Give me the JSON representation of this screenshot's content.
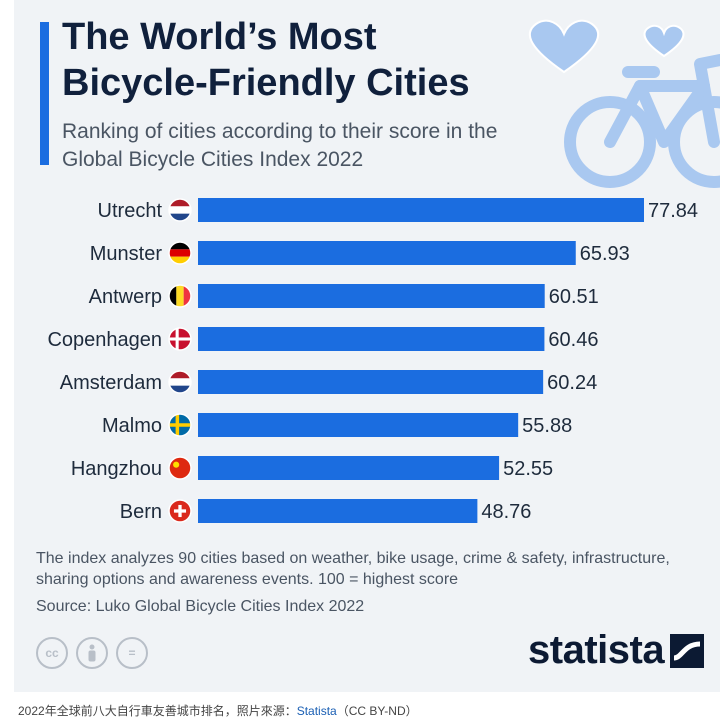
{
  "header": {
    "title": "The World’s Most Bicycle-Friendly Cities",
    "subtitle": "Ranking of cities according to their score in the Global Bicycle Cities Index 2022"
  },
  "chart_data": {
    "type": "bar",
    "orientation": "horizontal",
    "categories": [
      "Utrecht",
      "Munster",
      "Antwerp",
      "Copenhagen",
      "Amsterdam",
      "Malmo",
      "Hangzhou",
      "Bern"
    ],
    "flags": [
      "netherlands",
      "germany",
      "belgium",
      "denmark",
      "netherlands",
      "sweden",
      "china",
      "switzerland"
    ],
    "values": [
      77.84,
      65.93,
      60.51,
      60.46,
      60.24,
      55.88,
      52.55,
      48.76
    ],
    "value_labels": [
      "77.84",
      "65.93",
      "60.51",
      "60.46",
      "60.24",
      "55.88",
      "52.55",
      "48.76"
    ],
    "bar_color": "#1b6de0",
    "xlim": [
      0,
      77.84
    ],
    "grid": false,
    "legend": "none"
  },
  "notes": {
    "footnote": "The index analyzes 90 cities based on weather, bike usage, crime & safety, infrastructure, sharing options and awareness events. 100 = highest score",
    "source": "Source: Luko Global Bicycle Cities Index 2022"
  },
  "brand": {
    "name": "statista"
  },
  "license_icons": [
    "cc-icon",
    "by-person-icon",
    "nd-equals-icon"
  ],
  "license_glyphs": [
    "cc",
    "",
    "="
  ],
  "caption": {
    "text": "2022年全球前八大自行車友善城市排名，照片來源：",
    "source": "Statista",
    "license": "（CC BY-ND）"
  },
  "colors": {
    "background": "#f0f3f6",
    "accent": "#1b6de0",
    "title": "#10203c",
    "illustration": "#a9c8f0"
  }
}
